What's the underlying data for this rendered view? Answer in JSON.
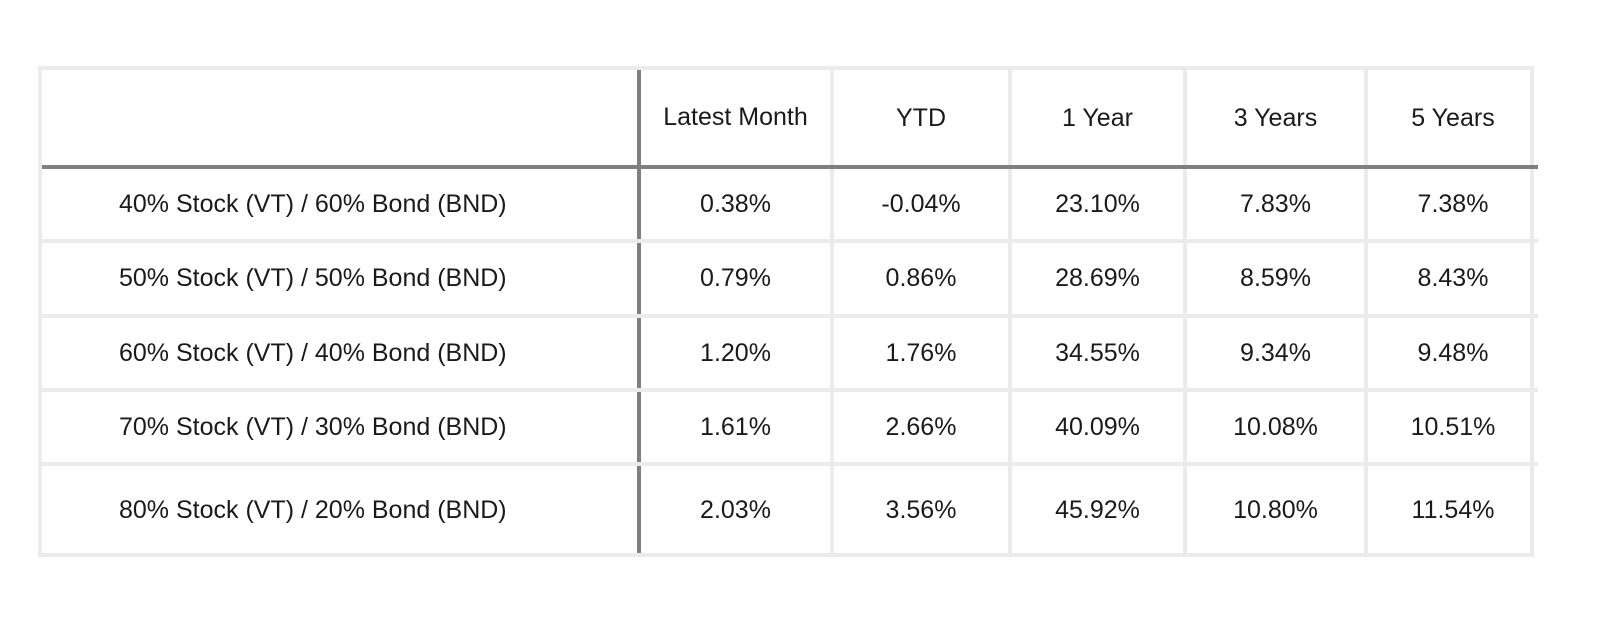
{
  "table": {
    "columns": [
      "",
      "Latest Month",
      "YTD",
      "1 Year",
      "3 Years",
      "5 Years"
    ],
    "rows": [
      {
        "label": "40% Stock (VT) / 60% Bond (BND)",
        "latest_month": "0.38%",
        "ytd": "-0.04%",
        "one_year": "23.10%",
        "three_years": "7.83%",
        "five_years": "7.38%"
      },
      {
        "label": "50% Stock (VT) / 50% Bond (BND)",
        "latest_month": "0.79%",
        "ytd": "0.86%",
        "one_year": "28.69%",
        "three_years": "8.59%",
        "five_years": "8.43%"
      },
      {
        "label": "60% Stock (VT) / 40% Bond (BND)",
        "latest_month": "1.20%",
        "ytd": "1.76%",
        "one_year": "34.55%",
        "three_years": "9.34%",
        "five_years": "9.48%"
      },
      {
        "label": "70% Stock (VT) / 30% Bond (BND)",
        "latest_month": "1.61%",
        "ytd": "2.66%",
        "one_year": "40.09%",
        "three_years": "10.08%",
        "five_years": "10.51%"
      },
      {
        "label": "80% Stock (VT) / 20% Bond (BND)",
        "latest_month": "2.03%",
        "ytd": "3.56%",
        "one_year": "45.92%",
        "three_years": "10.80%",
        "five_years": "11.54%"
      }
    ]
  }
}
